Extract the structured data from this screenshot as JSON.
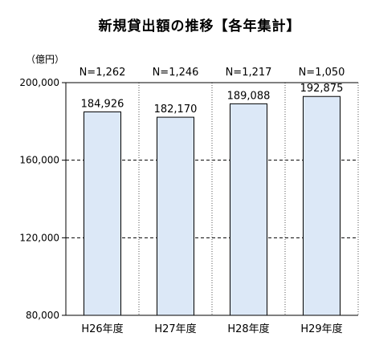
{
  "chart_data": {
    "type": "bar",
    "title": "新規貸出額の推移【各年集計】",
    "unit_label": "（億円）",
    "categories": [
      "H26年度",
      "H27年度",
      "H28年度",
      "H29年度"
    ],
    "values": [
      184926,
      182170,
      189088,
      192875
    ],
    "value_labels": [
      "184,926",
      "182,170",
      "189,088",
      "192,875"
    ],
    "counts": [
      "N=1,262",
      "N=1,246",
      "N=1,217",
      "N=1,050"
    ],
    "ylim": [
      80000,
      200000
    ],
    "yticks": [
      80000,
      120000,
      160000,
      200000
    ],
    "ytick_labels": [
      "80,000",
      "120,000",
      "160,000",
      "200,000"
    ],
    "grid": "horizontal-dashed",
    "bar_color": "#dce8f7",
    "bar_edge_color": "#000000"
  }
}
